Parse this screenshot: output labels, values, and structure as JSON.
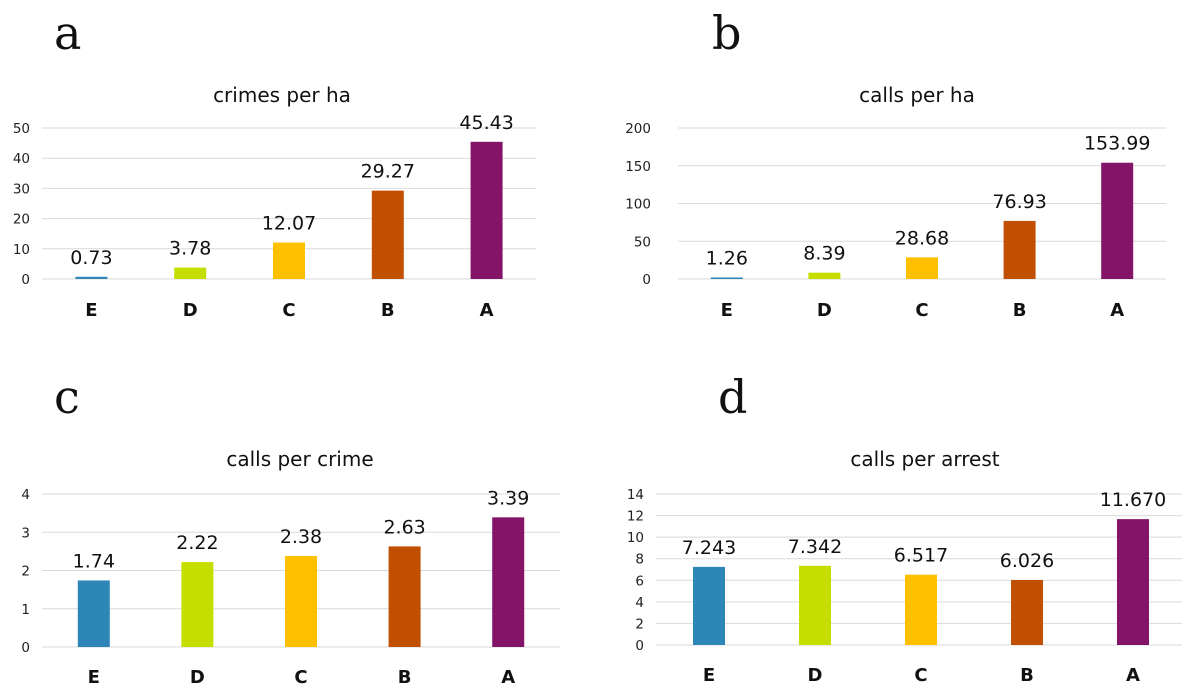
{
  "chart_data": [
    {
      "panel": "a",
      "type": "bar",
      "title": "crimes per ha",
      "categories": [
        "E",
        "D",
        "C",
        "B",
        "A"
      ],
      "values": [
        0.73,
        3.78,
        12.07,
        29.27,
        45.43
      ],
      "value_labels": [
        "0.73",
        "3.78",
        "12.07",
        "29.27",
        "45.43"
      ],
      "ylim": [
        0,
        50
      ],
      "yticks": [
        0,
        10,
        20,
        30,
        40,
        50
      ],
      "colors": [
        "#2E86B8",
        "#C5DE00",
        "#FFC000",
        "#C05000",
        "#841467"
      ],
      "grid": true,
      "legend": "none"
    },
    {
      "panel": "b",
      "type": "bar",
      "title": "calls per ha",
      "categories": [
        "E",
        "D",
        "C",
        "B",
        "A"
      ],
      "values": [
        1.26,
        8.39,
        28.68,
        76.93,
        153.99
      ],
      "value_labels": [
        "1.26",
        "8.39",
        "28.68",
        "76.93",
        "153.99"
      ],
      "ylim": [
        0,
        200
      ],
      "yticks": [
        0,
        50,
        100,
        150,
        200
      ],
      "colors": [
        "#2E86B8",
        "#C5DE00",
        "#FFC000",
        "#C05000",
        "#841467"
      ],
      "grid": true,
      "legend": "none"
    },
    {
      "panel": "c",
      "type": "bar",
      "title": "calls per crime",
      "categories": [
        "E",
        "D",
        "C",
        "B",
        "A"
      ],
      "values": [
        1.74,
        2.22,
        2.38,
        2.63,
        3.39
      ],
      "value_labels": [
        "1.74",
        "2.22",
        "2.38",
        "2.63",
        "3.39"
      ],
      "ylim": [
        0,
        4
      ],
      "yticks": [
        0,
        1,
        2,
        3,
        4
      ],
      "colors": [
        "#2E86B8",
        "#C5DE00",
        "#FFC000",
        "#C05000",
        "#841467"
      ],
      "grid": true,
      "legend": "none"
    },
    {
      "panel": "d",
      "type": "bar",
      "title": "calls per arrest",
      "categories": [
        "E",
        "D",
        "C",
        "B",
        "A"
      ],
      "values": [
        7.243,
        7.342,
        6.517,
        6.026,
        11.67
      ],
      "value_labels": [
        "7.243",
        "7.342",
        "6.517",
        "6.026",
        "11.670"
      ],
      "ylim": [
        0,
        14
      ],
      "yticks": [
        0,
        2,
        4,
        6,
        8,
        10,
        12,
        14
      ],
      "colors": [
        "#2E86B8",
        "#C5DE00",
        "#FFC000",
        "#C05000",
        "#841467"
      ],
      "grid": true,
      "legend": "none"
    }
  ]
}
